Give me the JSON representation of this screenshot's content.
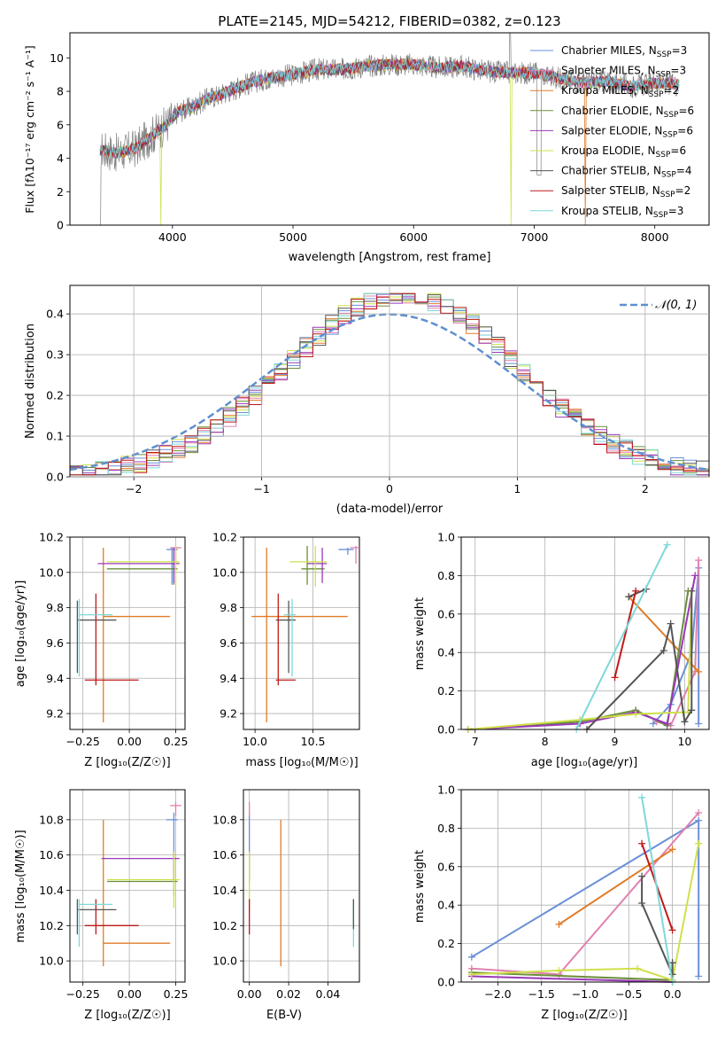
{
  "figure_title": "PLATE=2145, MJD=54212, FIBERID=0382, z=0.123",
  "colors": {
    "c1": "#6a8fd8",
    "c2": "#e07b28",
    "c3": "#6b8f3a",
    "c4": "#9a38b8",
    "c5": "#cfe04a",
    "c6": "#555555",
    "c7": "#c01818",
    "c8": "#7fd8d8",
    "c9": "#e080b0",
    "norm": "#5f8fd0",
    "grey": "#808080"
  },
  "chart_data": [
    {
      "type": "line",
      "name": "spectrum",
      "xlabel": "wavelength [Angstrom, rest frame]",
      "ylabel": "Flux [fλ10⁻¹⁷ erg cm⁻² s⁻¹ A⁻¹]",
      "xlim": [
        3150,
        8450
      ],
      "ylim": [
        0,
        11.5
      ],
      "xticks": [
        "4000",
        "5000",
        "6000",
        "7000",
        "8000"
      ],
      "yticks": [
        "0",
        "2",
        "4",
        "6",
        "8",
        "10"
      ],
      "continuum": {
        "x": [
          3400,
          3550,
          3700,
          3800,
          3950,
          4050,
          4150,
          4300,
          4400,
          4600,
          4800,
          5000,
          5200,
          5400,
          5600,
          5800,
          6000,
          6200,
          6400,
          6600,
          6800,
          7000,
          7200,
          7400,
          7600,
          7800,
          8000,
          8200
        ],
        "y": [
          4.5,
          4.3,
          4.6,
          5.2,
          6.0,
          6.8,
          7.0,
          7.6,
          7.8,
          8.4,
          8.8,
          9.0,
          9.3,
          9.3,
          9.5,
          9.6,
          9.6,
          9.4,
          9.5,
          9.2,
          9.1,
          9.1,
          8.8,
          8.5,
          8.6,
          8.3,
          8.5,
          8.4
        ]
      },
      "legend": [
        {
          "label": "Chabrier MILES, N",
          "sub": "SSP",
          "tail": "=3",
          "color": "c1"
        },
        {
          "label": "Salpeter MILES, N",
          "sub": "SSP",
          "tail": "=3",
          "color": "c9"
        },
        {
          "label": "Kroupa MILES, N",
          "sub": "SSP",
          "tail": "=2",
          "color": "c2"
        },
        {
          "label": "Chabrier ELODIE, N",
          "sub": "SSP",
          "tail": "=6",
          "color": "c3"
        },
        {
          "label": "Salpeter ELODIE, N",
          "sub": "SSP",
          "tail": "=6",
          "color": "c4"
        },
        {
          "label": "Kroupa ELODIE, N",
          "sub": "SSP",
          "tail": "=6",
          "color": "c5"
        },
        {
          "label": "Chabrier STELIB, N",
          "sub": "SSP",
          "tail": "=4",
          "color": "c6"
        },
        {
          "label": "Salpeter STELIB, N",
          "sub": "SSP",
          "tail": "=2",
          "color": "c7"
        },
        {
          "label": "Kroupa STELIB, N",
          "sub": "SSP",
          "tail": "=3",
          "color": "c8"
        }
      ]
    },
    {
      "type": "bar",
      "name": "residual histogram",
      "xlabel": "(data-model)/error",
      "ylabel": "Normed distribution",
      "xlim": [
        -2.5,
        2.5
      ],
      "ylim": [
        0,
        0.47
      ],
      "xticks": [
        "−2",
        "−1",
        "0",
        "1",
        "2"
      ],
      "yticks": [
        "0.0",
        "0.1",
        "0.2",
        "0.3",
        "0.4"
      ],
      "legend_label": "𝒩(0, 1)"
    },
    {
      "type": "scatter",
      "name": "age vs Z",
      "xlabel": "Z [log₁₀(Z/Z☉)]",
      "ylabel": "age  [log₁₀(age/yr)]",
      "xlim": [
        -0.32,
        0.3
      ],
      "ylim": [
        9.11,
        10.2
      ],
      "xticks": [
        "−0.25",
        "0.00",
        "0.25"
      ],
      "yticks": [
        "9.2",
        "9.4",
        "9.6",
        "9.8",
        "10.0",
        "10.2"
      ]
    },
    {
      "type": "scatter",
      "name": "age vs mass",
      "xlabel": "mass [log₁₀(M/M☉)]",
      "xlim": [
        9.9,
        10.9
      ],
      "ylim": [
        9.11,
        10.2
      ],
      "xticks": [
        "10.0",
        "10.5"
      ],
      "yticks": [
        "9.2",
        "9.4",
        "9.6",
        "9.8",
        "10.0",
        "10.2"
      ]
    },
    {
      "type": "line",
      "name": "mass weight vs age",
      "xlabel": "age  [log₁₀(age/yr)]",
      "ylabel": "mass weight",
      "xlim": [
        6.8,
        10.35
      ],
      "ylim": [
        0,
        1
      ],
      "xticks": [
        "7",
        "8",
        "9",
        "10"
      ],
      "yticks": [
        "0.0",
        "0.2",
        "0.4",
        "0.6",
        "0.8",
        "1.0"
      ]
    },
    {
      "type": "scatter",
      "name": "mass vs Z",
      "xlabel": "Z [log₁₀(Z/Z☉)]",
      "ylabel": "mass [log₁₀(M/M☉)]",
      "xlim": [
        -0.32,
        0.3
      ],
      "ylim": [
        9.88,
        10.97
      ],
      "xticks": [
        "−0.25",
        "0.00",
        "0.25"
      ],
      "yticks": [
        "10.0",
        "10.2",
        "10.4",
        "10.6",
        "10.8"
      ]
    },
    {
      "type": "scatter",
      "name": "mass vs E(B-V)",
      "xlabel": "E(B-V)",
      "xlim": [
        -0.003,
        0.056
      ],
      "ylim": [
        9.88,
        10.97
      ],
      "xticks": [
        "0.00",
        "0.02",
        "0.04"
      ],
      "yticks": [
        "10.0",
        "10.2",
        "10.4",
        "10.6",
        "10.8"
      ]
    },
    {
      "type": "line",
      "name": "mass weight vs Z",
      "xlabel": "Z [log₁₀(Z/Z☉)]",
      "ylabel": "mass weight",
      "xlim": [
        -2.42,
        0.42
      ],
      "ylim": [
        0,
        1
      ],
      "xticks": [
        "−2.0",
        "−1.5",
        "−1.0",
        "−0.5",
        "0.0"
      ],
      "yticks": [
        "0.0",
        "0.2",
        "0.4",
        "0.6",
        "0.8",
        "1.0"
      ]
    }
  ],
  "errorbars_ageZ": [
    {
      "c": "c1",
      "x": 0.23,
      "y": 10.13,
      "xl": 0.2,
      "xh": 0.26,
      "yl": 9.93,
      "yh": 10.14
    },
    {
      "c": "c9",
      "x": 0.25,
      "y": 10.14,
      "xl": 0.22,
      "xh": 0.28,
      "yl": 10.05,
      "yh": 10.15
    },
    {
      "c": "c2",
      "x": -0.14,
      "y": 9.75,
      "xl": -0.14,
      "xh": 0.22,
      "yl": 9.15,
      "yh": 10.14
    },
    {
      "c": "c3",
      "x": 0.24,
      "y": 10.02,
      "xl": -0.12,
      "xh": 0.26,
      "yl": 9.93,
      "yh": 10.13
    },
    {
      "c": "c4",
      "x": 0.24,
      "y": 10.05,
      "xl": -0.17,
      "xh": 0.27,
      "yl": 9.94,
      "yh": 10.14
    },
    {
      "c": "c5",
      "x": 0.25,
      "y": 10.06,
      "xl": -0.12,
      "xh": 0.27,
      "yl": 9.92,
      "yh": 10.15
    },
    {
      "c": "c6",
      "x": -0.28,
      "y": 9.73,
      "xl": -0.28,
      "xh": -0.07,
      "yl": 9.43,
      "yh": 9.84
    },
    {
      "c": "c7",
      "x": -0.18,
      "y": 9.39,
      "xl": -0.24,
      "xh": 0.05,
      "yl": 9.36,
      "yh": 9.88
    },
    {
      "c": "c8",
      "x": -0.27,
      "y": 9.76,
      "xl": -0.27,
      "xh": -0.09,
      "yl": 9.41,
      "yh": 9.85
    }
  ],
  "errorbars_ageMass": [
    {
      "c": "c1",
      "x": 10.8,
      "y": 10.13,
      "xl": 10.72,
      "xh": 10.85,
      "yl": 10.1,
      "yh": 10.14
    },
    {
      "c": "c9",
      "x": 10.87,
      "y": 10.14,
      "xl": 10.82,
      "xh": 10.89,
      "yl": 10.05,
      "yh": 10.15
    },
    {
      "c": "c2",
      "x": 10.1,
      "y": 9.75,
      "xl": 9.97,
      "xh": 10.8,
      "yl": 9.15,
      "yh": 10.14
    },
    {
      "c": "c3",
      "x": 10.45,
      "y": 10.02,
      "xl": 10.4,
      "xh": 10.6,
      "yl": 9.93,
      "yh": 10.15
    },
    {
      "c": "c4",
      "x": 10.58,
      "y": 10.05,
      "xl": 10.45,
      "xh": 10.62,
      "yl": 9.94,
      "yh": 10.14
    },
    {
      "c": "c5",
      "x": 10.52,
      "y": 10.06,
      "xl": 10.3,
      "xh": 10.62,
      "yl": 9.92,
      "yh": 10.15
    },
    {
      "c": "c6",
      "x": 10.29,
      "y": 9.73,
      "xl": 10.18,
      "xh": 10.35,
      "yl": 9.43,
      "yh": 9.84
    },
    {
      "c": "c7",
      "x": 10.2,
      "y": 9.39,
      "xl": 10.18,
      "xh": 10.35,
      "yl": 9.36,
      "yh": 9.88
    },
    {
      "c": "c8",
      "x": 10.32,
      "y": 9.76,
      "xl": 10.25,
      "xh": 10.35,
      "yl": 9.41,
      "yh": 9.85
    }
  ],
  "errorbars_massZ": [
    {
      "c": "c1",
      "x": 0.24,
      "y": 10.8,
      "xl": 0.2,
      "xh": 0.26,
      "yl": 10.6,
      "yh": 10.84
    },
    {
      "c": "c9",
      "x": 0.25,
      "y": 10.88,
      "xl": 0.22,
      "xh": 0.28,
      "yl": 10.82,
      "yh": 10.9
    },
    {
      "c": "c2",
      "x": -0.14,
      "y": 10.1,
      "xl": -0.14,
      "xh": 0.22,
      "yl": 9.97,
      "yh": 10.8
    },
    {
      "c": "c3",
      "x": 0.24,
      "y": 10.45,
      "xl": -0.12,
      "xh": 0.26,
      "yl": 10.37,
      "yh": 10.6
    },
    {
      "c": "c4",
      "x": 0.24,
      "y": 10.58,
      "xl": -0.15,
      "xh": 0.27,
      "yl": 10.45,
      "yh": 10.62
    },
    {
      "c": "c5",
      "x": 0.24,
      "y": 10.46,
      "xl": -0.12,
      "xh": 0.27,
      "yl": 10.3,
      "yh": 10.62
    },
    {
      "c": "c6",
      "x": -0.28,
      "y": 10.29,
      "xl": -0.28,
      "xh": -0.07,
      "yl": 10.15,
      "yh": 10.35
    },
    {
      "c": "c7",
      "x": -0.18,
      "y": 10.2,
      "xl": -0.24,
      "xh": 0.05,
      "yl": 10.15,
      "yh": 10.35
    },
    {
      "c": "c8",
      "x": -0.27,
      "y": 10.32,
      "xl": -0.27,
      "xh": -0.09,
      "yl": 10.08,
      "yh": 10.35
    }
  ],
  "errorbars_massEBV": [
    {
      "c": "c1",
      "x": 0.0,
      "y": 10.8,
      "yl": 10.6,
      "yh": 10.84
    },
    {
      "c": "c9",
      "x": 0.0,
      "y": 10.88,
      "yl": 10.82,
      "yh": 10.9
    },
    {
      "c": "c4",
      "x": 0.0,
      "y": 10.58,
      "yl": 10.45,
      "yh": 10.62
    },
    {
      "c": "c5",
      "x": 0.0,
      "y": 10.46,
      "yl": 10.3,
      "yh": 10.62
    },
    {
      "c": "c2",
      "x": 0.016,
      "y": 10.1,
      "yl": 9.97,
      "yh": 10.8
    },
    {
      "c": "c7",
      "x": 0.0,
      "y": 10.2,
      "yl": 10.15,
      "yh": 10.35
    },
    {
      "c": "c8",
      "x": 0.053,
      "y": 10.2,
      "yl": 10.08,
      "yh": 10.35
    },
    {
      "c": "c6",
      "x": 0.053,
      "y": 10.29,
      "yl": 10.18,
      "yh": 10.35
    }
  ],
  "weights_age": [
    {
      "c": "c1",
      "pts": [
        [
          9.55,
          0.03
        ],
        [
          9.8,
          0.13
        ],
        [
          10.1,
          0.4
        ],
        [
          10.2,
          0.84
        ],
        [
          10.2,
          0.03
        ]
      ]
    },
    {
      "c": "c9",
      "pts": [
        [
          9.6,
          0.04
        ],
        [
          9.8,
          0.02
        ],
        [
          10.15,
          0.3
        ],
        [
          10.2,
          0.88
        ]
      ]
    },
    {
      "c": "c2",
      "pts": [
        [
          9.2,
          0.69
        ],
        [
          10.2,
          0.3
        ]
      ]
    },
    {
      "c": "c3",
      "pts": [
        [
          6.9,
          0.0
        ],
        [
          8.5,
          0.04
        ],
        [
          9.3,
          0.1
        ],
        [
          9.75,
          0.02
        ],
        [
          10.05,
          0.72
        ]
      ]
    },
    {
      "c": "c4",
      "pts": [
        [
          6.9,
          0.0
        ],
        [
          8.5,
          0.03
        ],
        [
          9.3,
          0.09
        ],
        [
          9.75,
          0.03
        ],
        [
          10.15,
          0.8
        ]
      ]
    },
    {
      "c": "c5",
      "pts": [
        [
          6.9,
          0.0
        ],
        [
          8.5,
          0.05
        ],
        [
          9.3,
          0.08
        ],
        [
          10.05,
          0.09
        ],
        [
          10.1,
          0.72
        ]
      ]
    },
    {
      "c": "c6",
      "pts": [
        [
          8.6,
          0.0
        ],
        [
          9.7,
          0.41
        ],
        [
          9.8,
          0.55
        ],
        [
          10.0,
          0.04
        ],
        [
          10.1,
          0.1
        ],
        [
          10.1,
          0.72
        ]
      ]
    },
    {
      "c": "c6",
      "pts": [
        [
          9.45,
          0.73
        ],
        [
          9.2,
          0.69
        ]
      ]
    },
    {
      "c": "c7",
      "pts": [
        [
          9.0,
          0.27
        ],
        [
          9.3,
          0.72
        ]
      ]
    },
    {
      "c": "c8",
      "pts": [
        [
          8.45,
          0.0
        ],
        [
          9.75,
          0.96
        ]
      ]
    }
  ],
  "weights_Z": [
    {
      "c": "c1",
      "pts": [
        [
          -2.3,
          0.13
        ],
        [
          0.3,
          0.84
        ],
        [
          0.3,
          0.03
        ]
      ]
    },
    {
      "c": "c9",
      "pts": [
        [
          -2.3,
          0.07
        ],
        [
          -1.3,
          0.04
        ],
        [
          0.3,
          0.88
        ]
      ]
    },
    {
      "c": "c2",
      "pts": [
        [
          -1.3,
          0.3
        ],
        [
          0.0,
          0.69
        ]
      ]
    },
    {
      "c": "c3",
      "pts": [
        [
          -2.3,
          0.05
        ],
        [
          0.0,
          0.01
        ],
        [
          0.0,
          0.1
        ]
      ]
    },
    {
      "c": "c4",
      "pts": [
        [
          -2.3,
          0.03
        ],
        [
          0.0,
          0.0
        ]
      ]
    },
    {
      "c": "c5",
      "pts": [
        [
          -2.3,
          0.04
        ],
        [
          -1.3,
          0.06
        ],
        [
          -0.4,
          0.07
        ],
        [
          0.0,
          0.01
        ],
        [
          0.3,
          0.72
        ],
        [
          0.3,
          0.72
        ]
      ]
    },
    {
      "c": "c6",
      "pts": [
        [
          -0.35,
          0.55
        ],
        [
          -0.35,
          0.41
        ],
        [
          0.0,
          0.04
        ],
        [
          0.0,
          0.1
        ]
      ]
    },
    {
      "c": "c7",
      "pts": [
        [
          -0.35,
          0.72
        ],
        [
          0.0,
          0.27
        ]
      ]
    },
    {
      "c": "c8",
      "pts": [
        [
          -0.35,
          0.96
        ],
        [
          0.0,
          0.0
        ]
      ]
    }
  ]
}
